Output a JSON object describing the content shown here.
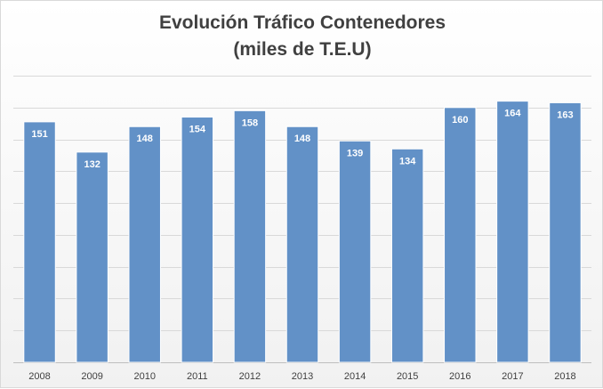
{
  "chart_data": {
    "type": "bar",
    "title": "Evolución Tráfico Contenedores",
    "subtitle": "(miles de T.E.U)",
    "categories": [
      "2008",
      "2009",
      "2010",
      "2011",
      "2012",
      "2013",
      "2014",
      "2015",
      "2016",
      "2017",
      "2018"
    ],
    "values": [
      151,
      132,
      148,
      154,
      158,
      148,
      139,
      134,
      160,
      164,
      163
    ],
    "data_labels": [
      "151",
      "132",
      "148",
      "154",
      "158",
      "148",
      "139",
      "134",
      "160",
      "164",
      "163"
    ],
    "xlabel": "",
    "ylabel": "",
    "ylim": [
      0,
      180
    ],
    "y_tick_step": 20,
    "y_tick_labels_visible": false,
    "grid": true,
    "legend": "none",
    "colors": {
      "bar": "#6291c7",
      "bar_edge": "#ffffff",
      "data_label": "#ffffff",
      "gridline": "#d9d9d9",
      "axis": "#bfbfbf",
      "tick_label": "#404040",
      "title": "#404040"
    }
  }
}
